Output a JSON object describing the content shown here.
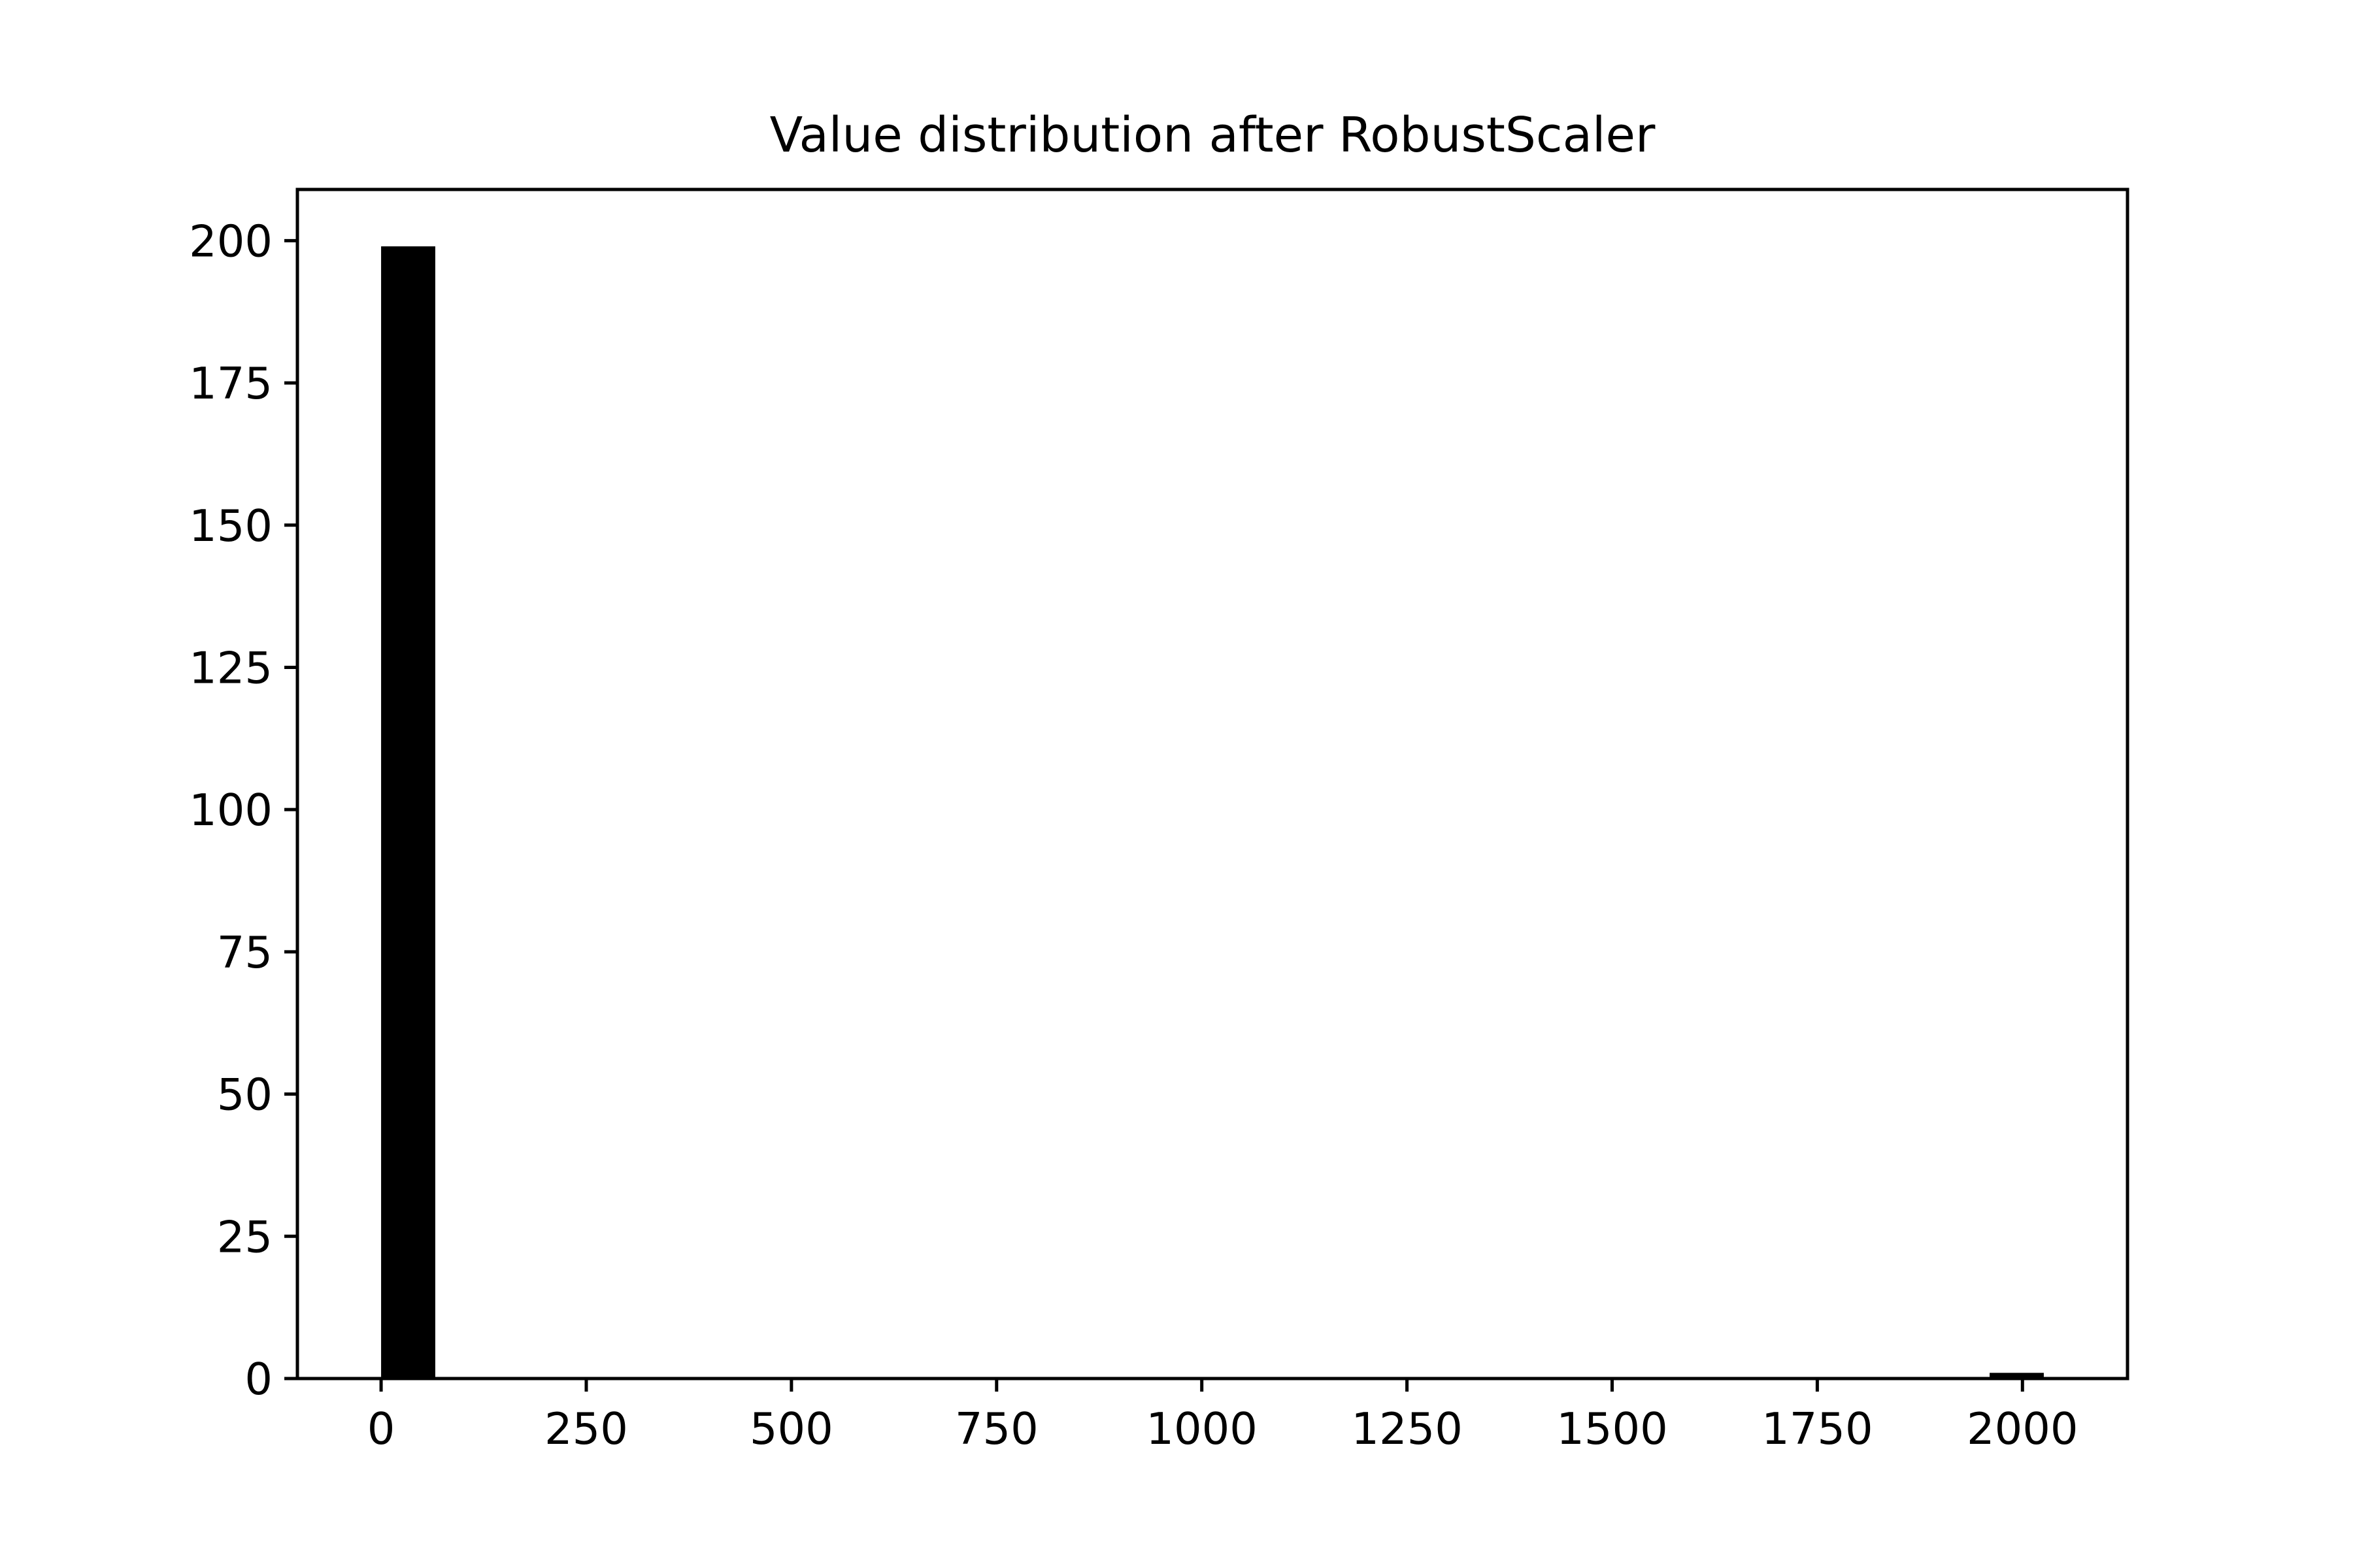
{
  "chart_data": {
    "type": "bar",
    "title": "Value distribution after RobustScaler",
    "xlabel": "",
    "ylabel": "",
    "xlim": [
      -102,
      2128
    ],
    "ylim": [
      0,
      209
    ],
    "x_ticks": [
      0,
      250,
      500,
      750,
      1000,
      1250,
      1500,
      1750,
      2000
    ],
    "x_tick_labels": [
      "0",
      "250",
      "500",
      "750",
      "1000",
      "1250",
      "1500",
      "1750",
      "2000"
    ],
    "y_ticks": [
      0,
      25,
      50,
      75,
      100,
      125,
      150,
      175,
      200
    ],
    "y_tick_labels": [
      "0",
      "25",
      "50",
      "75",
      "100",
      "125",
      "150",
      "175",
      "200"
    ],
    "bars": [
      {
        "x_start": 0,
        "x_end": 66,
        "count": 199
      },
      {
        "x_start": 1960,
        "x_end": 2026,
        "count": 1
      }
    ],
    "bar_color": "#000000",
    "grid": false,
    "legend": "none"
  }
}
